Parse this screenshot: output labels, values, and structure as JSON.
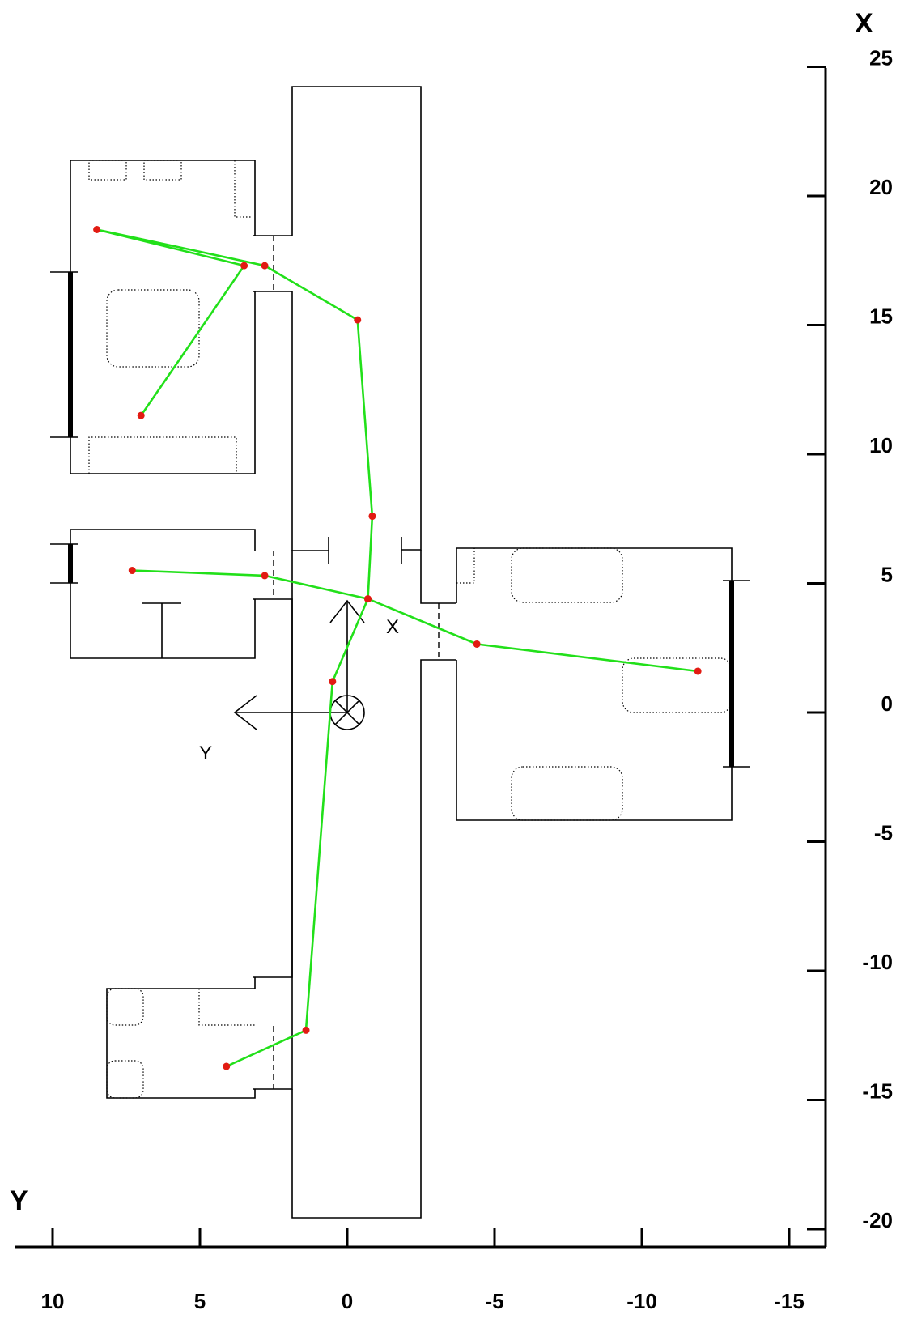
{
  "chart_data": {
    "type": "scatter",
    "title": "",
    "xlabel": "Y",
    "ylabel": "X",
    "xlim": [
      11,
      -16.5
    ],
    "ylim": [
      -20.6,
      25
    ],
    "x_axis_reversed": true,
    "x_ticks": [
      10,
      5,
      0,
      -5,
      -10,
      -15
    ],
    "x_tick_labels": [
      "10",
      "5",
      "0",
      "-5",
      "-10",
      "-15"
    ],
    "y_ticks": [
      25,
      20,
      15,
      10,
      5,
      0,
      -5,
      -10,
      -15,
      -20
    ],
    "y_tick_labels": [
      "25",
      "20",
      "15",
      "10",
      "5",
      "0",
      "-5",
      "-10",
      "-15",
      "-20"
    ],
    "grid": false,
    "robot_frame": {
      "x_label": "X",
      "y_label": "Y"
    },
    "path_color": "#22e01a",
    "point_color": "#e21b12",
    "series": [
      {
        "x": [
          4.1,
          1.4,
          0.5,
          -0.7,
          -0.85,
          -0.35,
          2.8,
          8.5,
          3.5,
          7.0
        ],
        "y": [
          -13.7,
          -12.3,
          1.2,
          4.4,
          7.6,
          15.2,
          17.3,
          18.7,
          17.3,
          11.5
        ]
      },
      {
        "x": [
          7.3,
          2.8,
          -0.7,
          -4.4,
          -11.9
        ],
        "y": [
          5.5,
          5.3,
          4.4,
          2.65,
          1.6
        ]
      }
    ]
  }
}
